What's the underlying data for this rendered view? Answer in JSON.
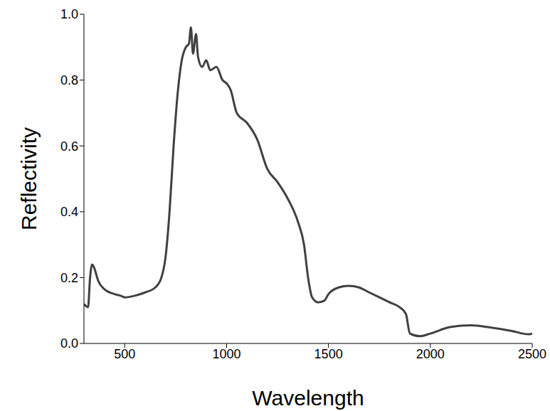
{
  "chart_data": {
    "type": "line",
    "xlabel": "Wavelength",
    "ylabel": "Reflectivity",
    "color": "#404040",
    "x": [
      300,
      320,
      330,
      340,
      350,
      370,
      400,
      450,
      480,
      500,
      550,
      600,
      650,
      680,
      700,
      720,
      740,
      760,
      780,
      800,
      815,
      825,
      835,
      850,
      860,
      880,
      900,
      920,
      950,
      980,
      1000,
      1020,
      1050,
      1100,
      1150,
      1200,
      1250,
      1300,
      1350,
      1380,
      1400,
      1420,
      1450,
      1480,
      1500,
      1550,
      1600,
      1650,
      1700,
      1750,
      1800,
      1850,
      1880,
      1900,
      1950,
      2000,
      2100,
      2200,
      2300,
      2400,
      2480,
      2500
    ],
    "values": [
      0.12,
      0.11,
      0.2,
      0.24,
      0.23,
      0.19,
      0.165,
      0.15,
      0.145,
      0.14,
      0.145,
      0.155,
      0.17,
      0.2,
      0.26,
      0.4,
      0.6,
      0.76,
      0.86,
      0.9,
      0.91,
      0.96,
      0.88,
      0.94,
      0.87,
      0.84,
      0.86,
      0.83,
      0.84,
      0.8,
      0.79,
      0.77,
      0.7,
      0.67,
      0.62,
      0.53,
      0.49,
      0.44,
      0.37,
      0.3,
      0.2,
      0.14,
      0.125,
      0.13,
      0.15,
      0.17,
      0.175,
      0.17,
      0.155,
      0.14,
      0.125,
      0.11,
      0.09,
      0.03,
      0.022,
      0.03,
      0.05,
      0.055,
      0.048,
      0.038,
      0.028,
      0.03
    ],
    "xlim": [
      300,
      2500
    ],
    "xticks": [
      500,
      1000,
      1500,
      2000,
      2500
    ],
    "ylim": [
      0,
      1
    ],
    "yticks": [
      {
        "value": 0,
        "label": "0.0"
      },
      0.2,
      0.4,
      0.6,
      0.8,
      {
        "value": 1,
        "label": "1.0"
      }
    ],
    "grid": false
  }
}
